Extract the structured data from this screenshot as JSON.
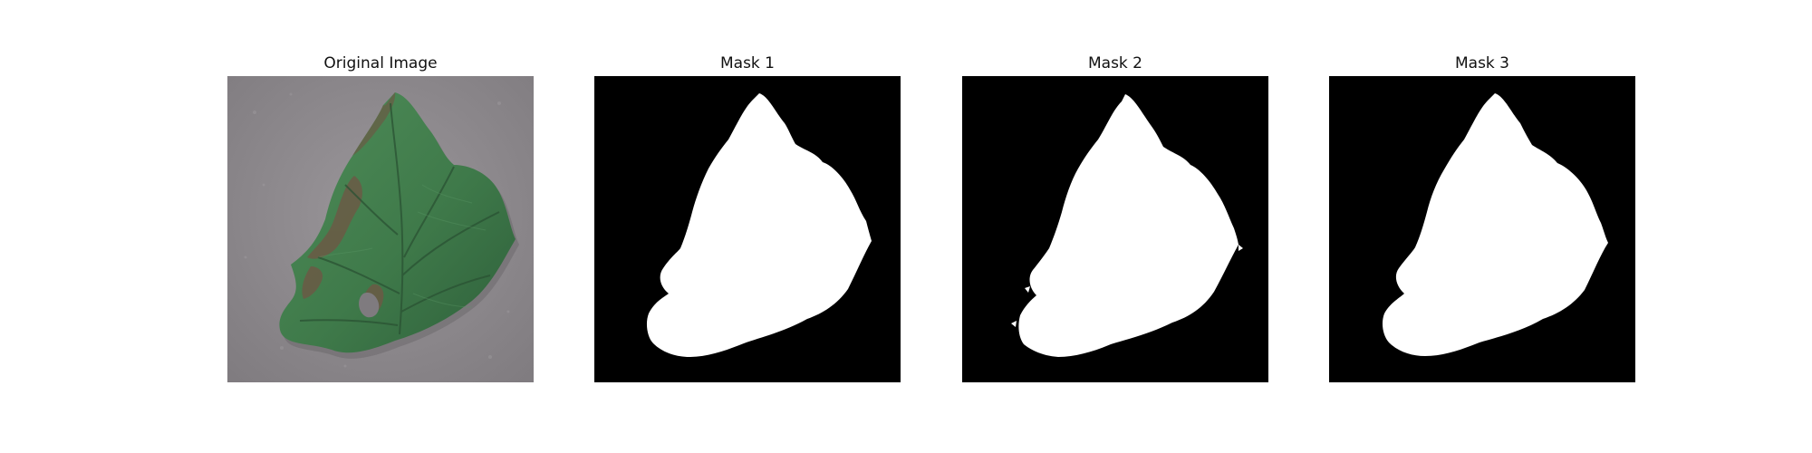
{
  "figure": {
    "panels": [
      {
        "title": "Original Image",
        "kind": "photo"
      },
      {
        "title": "Mask 1",
        "kind": "mask"
      },
      {
        "title": "Mask 2",
        "kind": "mask"
      },
      {
        "title": "Mask 3",
        "kind": "mask"
      }
    ],
    "colors": {
      "background": "#ffffff",
      "mask_background": "#000000",
      "mask_foreground": "#ffffff",
      "photo_background": "#8d898d",
      "leaf_green": "#3f7a4a",
      "leaf_dark": "#244f33",
      "lesion_brown": "#6b5a45"
    }
  }
}
